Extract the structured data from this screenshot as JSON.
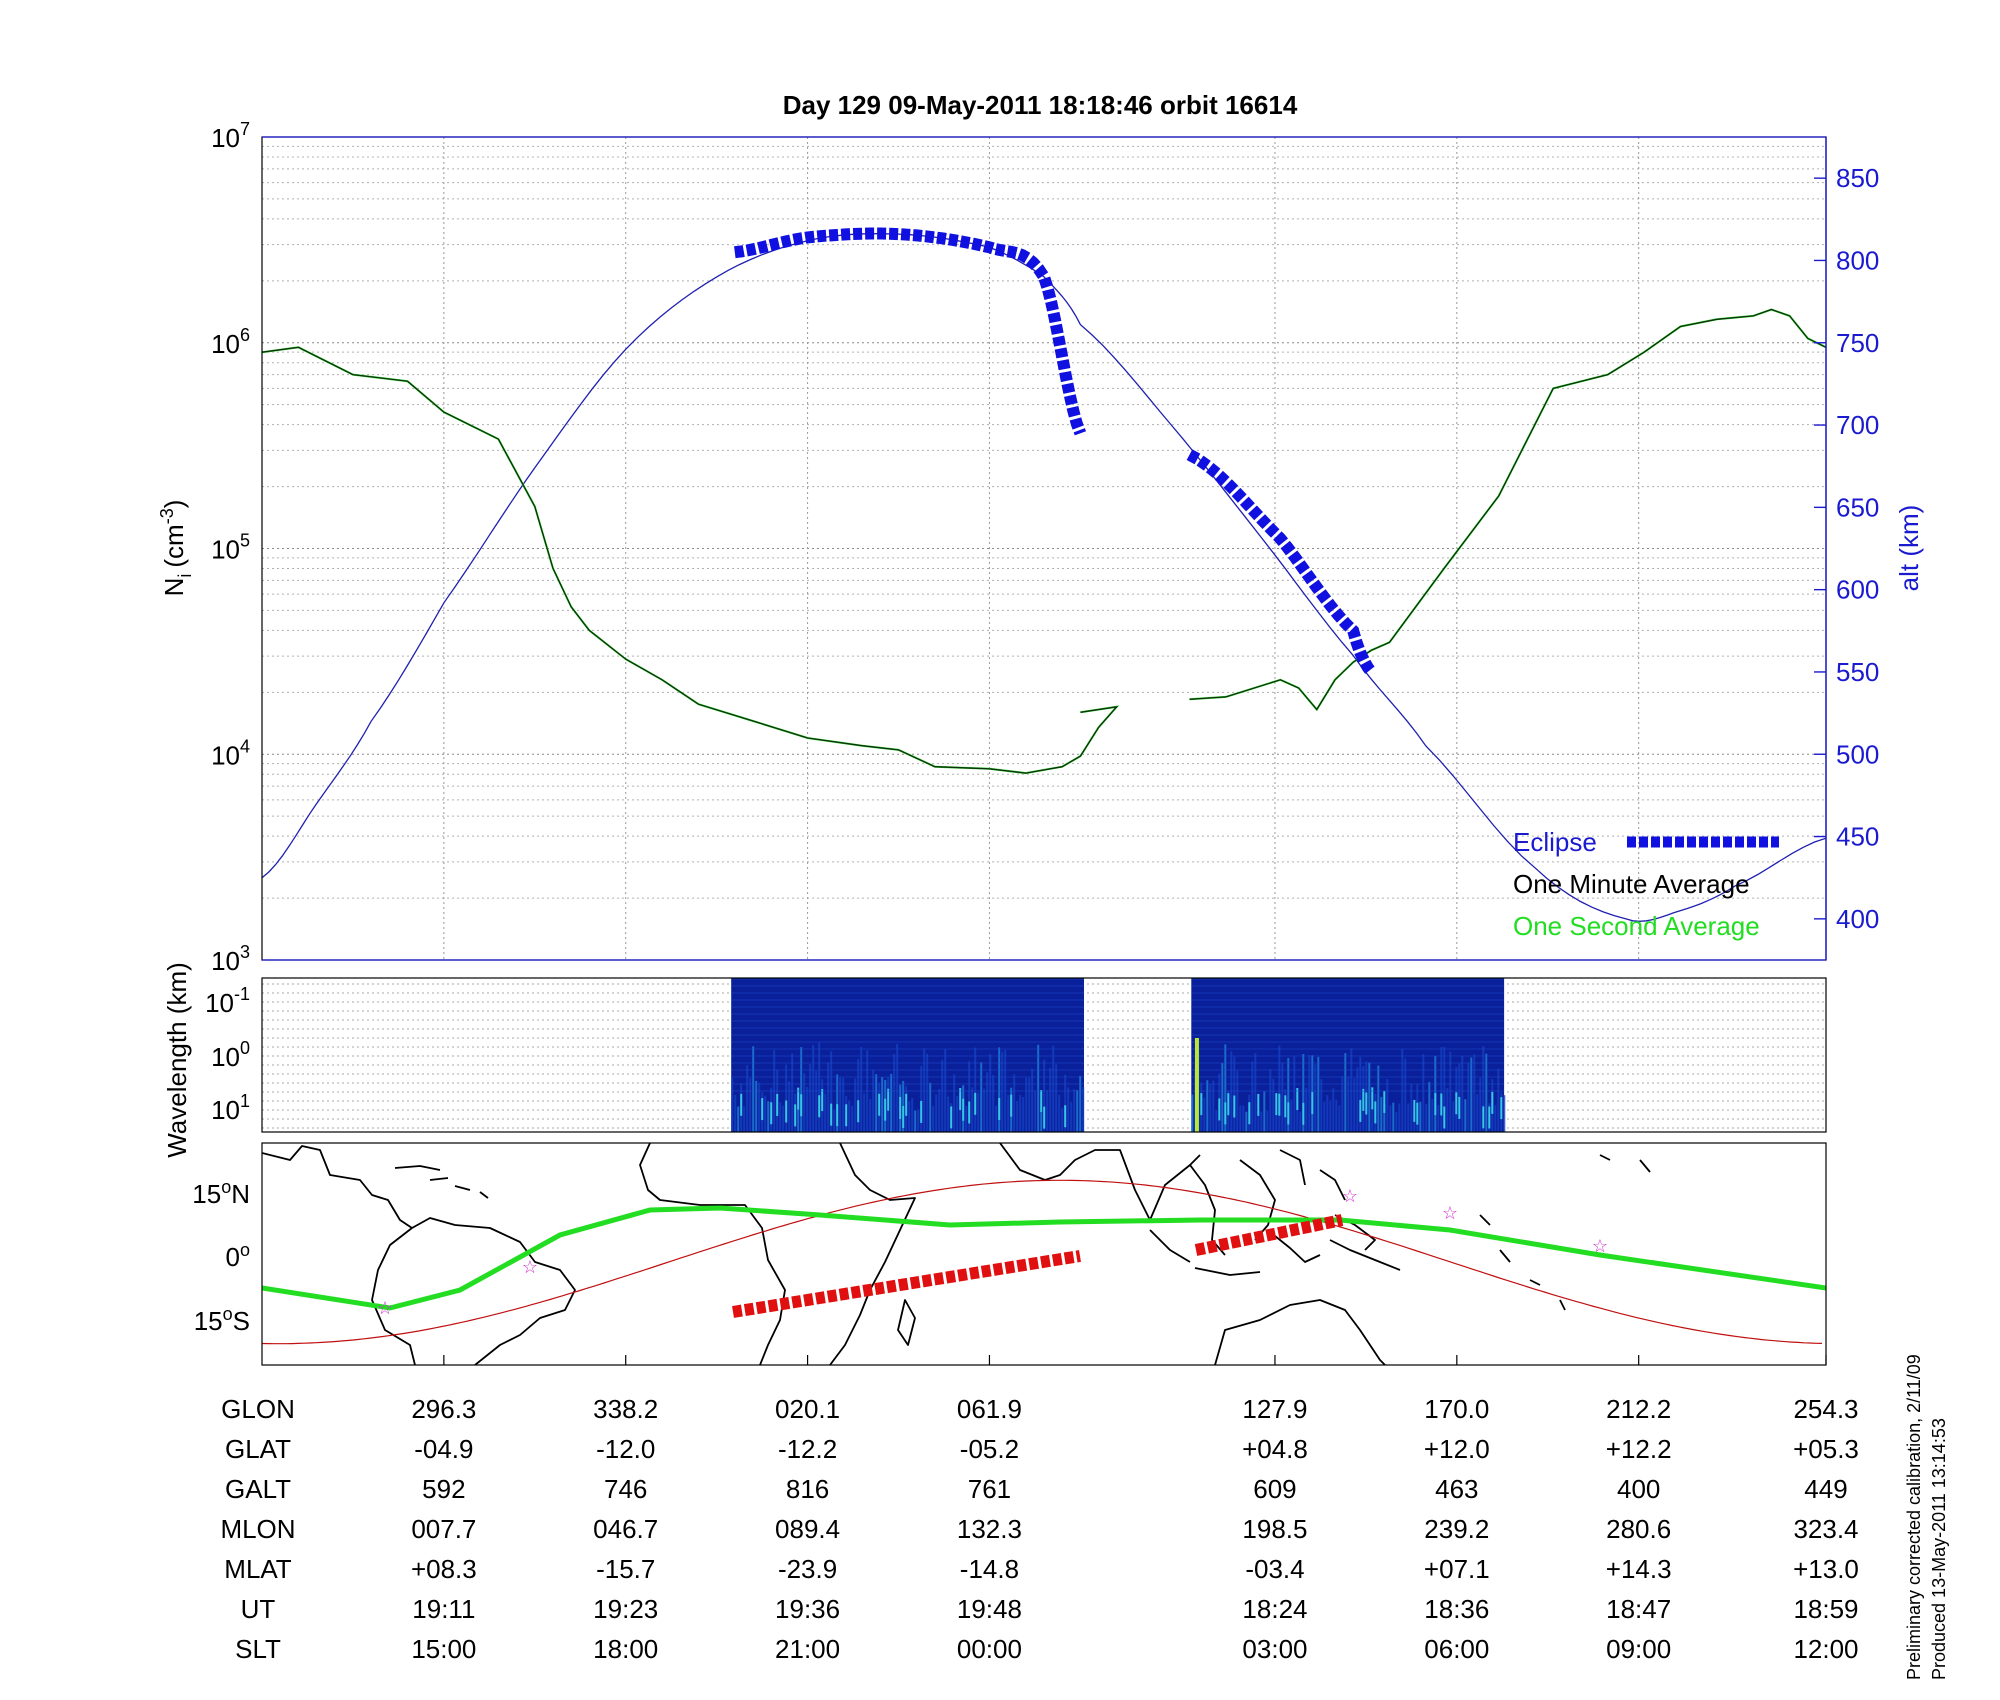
{
  "title": "Day 129  09-May-2011 18:18:46   orbit 16614",
  "chart_data": [
    {
      "type": "line",
      "panel": "density-altitude",
      "title": "Day 129  09-May-2011 18:18:46   orbit 16614",
      "ylabel_left": "Ni (cm-3)",
      "ylabel_left_main": "N",
      "ylabel_left_sub": "i",
      "ylabel_left_unit": "(cm",
      "ylabel_left_sup": "-3",
      "ylabel_left_close": ")",
      "ylabel_right": "alt (km)",
      "yscale_left": "log",
      "ylim_left": [
        1000,
        10000000
      ],
      "left_ticks": [
        {
          "v": 1000,
          "base": "10",
          "exp": "3"
        },
        {
          "v": 10000,
          "base": "10",
          "exp": "4"
        },
        {
          "v": 100000,
          "base": "10",
          "exp": "5"
        },
        {
          "v": 1000000,
          "base": "10",
          "exp": "6"
        },
        {
          "v": 10000000,
          "base": "10",
          "exp": "7"
        }
      ],
      "ylim_right": [
        375,
        875
      ],
      "right_ticks": [
        "400",
        "450",
        "500",
        "550",
        "600",
        "650",
        "700",
        "750",
        "800",
        "850"
      ],
      "xlim": [
        0,
        860
      ],
      "grid": true,
      "legend_position": "bottom-right",
      "legend": [
        {
          "label": "Eclipse",
          "color": "#1010e0"
        },
        {
          "label": "One Minute Average",
          "color": "#000000"
        },
        {
          "label": "One Second Average",
          "color": "#22dd22"
        }
      ],
      "series": [
        {
          "name": "alt (km)",
          "axis": "right",
          "color": "#2020b0",
          "x": [
            0,
            30,
            60,
            100,
            150,
            200,
            250,
            300,
            350,
            400,
            430,
            450,
            500,
            550,
            600,
            640,
            700,
            750,
            780,
            810,
            860
          ],
          "y": [
            425,
            470,
            520,
            592,
            674,
            746,
            790,
            812,
            816,
            808,
            790,
            761,
            700,
            631,
            560,
            505,
            431,
            400,
            405,
            420,
            449
          ]
        },
        {
          "name": "Eclipse",
          "axis": "right",
          "color": "#1010e0",
          "segments": [
            {
              "x": [
                260,
                300,
                350,
                400,
                430,
                450
              ],
              "y": [
                805,
                814,
                816,
                808,
                790,
                695
              ]
            },
            {
              "x": [
                510,
                560,
                600,
                610
              ],
              "y": [
                682,
                631,
                575,
                550
              ]
            }
          ]
        },
        {
          "name": "One Minute Average",
          "axis": "left",
          "color": "#000000",
          "segments": [
            {
              "x": [
                0,
                20,
                50,
                80,
                100,
                130,
                150,
                160,
                170,
                180,
                200,
                220,
                240,
                270,
                300,
                330,
                350,
                370,
                400,
                420,
                440,
                450,
                460,
                470,
                450
              ],
              "y": [
                900000,
                950000,
                700000,
                650000,
                460000,
                340000,
                160000,
                80000,
                52000,
                40000,
                29000,
                23000,
                17500,
                14500,
                12000,
                11000,
                10500,
                8700,
                8500,
                8100,
                8700,
                9800,
                13500,
                17000,
                16000
              ]
            },
            {
              "x": [
                510,
                530,
                560,
                570,
                580,
                590,
                600,
                610,
                620,
                650,
                680,
                710,
                740,
                760,
                780,
                800,
                820,
                830,
                840,
                850,
                860
              ],
              "y": [
                18500,
                19000,
                23000,
                21000,
                16500,
                23000,
                28000,
                32000,
                35000,
                80000,
                180000,
                600000,
                700000,
                900000,
                1200000,
                1300000,
                1350000,
                1450000,
                1350000,
                1050000,
                950000
              ]
            }
          ]
        },
        {
          "name": "One Second Average",
          "axis": "left",
          "color": "#22dd22",
          "segments": [
            {
              "x": [
                0,
                470
              ],
              "y": [
                900000,
                17000
              ]
            },
            {
              "x": [
                510,
                860
              ],
              "y": [
                18500,
                950000
              ]
            }
          ]
        }
      ],
      "x_tick_positions": [
        100,
        200,
        300,
        400,
        557,
        657,
        757,
        860
      ]
    },
    {
      "type": "heatmap",
      "panel": "wavelength-spectrogram",
      "ylabel": "Wavelength (km)",
      "yscale": "log",
      "y_ticks": [
        {
          "base": "10",
          "exp": "-1"
        },
        {
          "base": "10",
          "exp": "0"
        },
        {
          "base": "10",
          "exp": "1"
        }
      ],
      "colormap": "jet",
      "data_blocks_x": [
        [
          258,
          452
        ],
        [
          511,
          683
        ]
      ]
    },
    {
      "type": "map",
      "panel": "ground-track",
      "y_ticks": [
        {
          "value": "15",
          "hemi": "N"
        },
        {
          "value": "0",
          "hemi": ""
        },
        {
          "value": "15",
          "hemi": "S"
        }
      ],
      "track_color": "#c01010",
      "eclipse_track_color": "#e01010",
      "magnetic_equator_color": "#22dd22",
      "markers": "magenta stars"
    }
  ],
  "table": {
    "row_labels": [
      "GLON",
      "GLAT",
      "GALT",
      "MLON",
      "MLAT",
      "UT",
      "SLT"
    ],
    "columns": [
      [
        "296.3",
        "-04.9",
        "592",
        "007.7",
        "+08.3",
        "19:11",
        "15:00"
      ],
      [
        "338.2",
        "-12.0",
        "746",
        "046.7",
        "-15.7",
        "19:23",
        "18:00"
      ],
      [
        "020.1",
        "-12.2",
        "816",
        "089.4",
        "-23.9",
        "19:36",
        "21:00"
      ],
      [
        "061.9",
        "-05.2",
        "761",
        "132.3",
        "-14.8",
        "19:48",
        "00:00"
      ],
      [
        "127.9",
        "+04.8",
        "609",
        "198.5",
        "-03.4",
        "18:24",
        "03:00"
      ],
      [
        "170.0",
        "+12.0",
        "463",
        "239.2",
        "+07.1",
        "18:36",
        "06:00"
      ],
      [
        "212.2",
        "+12.2",
        "400",
        "280.6",
        "+14.3",
        "18:47",
        "09:00"
      ],
      [
        "254.3",
        "+05.3",
        "449",
        "323.4",
        "+13.0",
        "18:59",
        "12:00"
      ]
    ]
  },
  "footer": {
    "line1": "Preliminary corrected calibration, 2/11/09",
    "line2": "Produced 13-May-2011 13:14:53"
  },
  "colors": {
    "axis_left": "#000000",
    "axis_right": "#1a1ad0",
    "grid": "#9a9a9a"
  }
}
